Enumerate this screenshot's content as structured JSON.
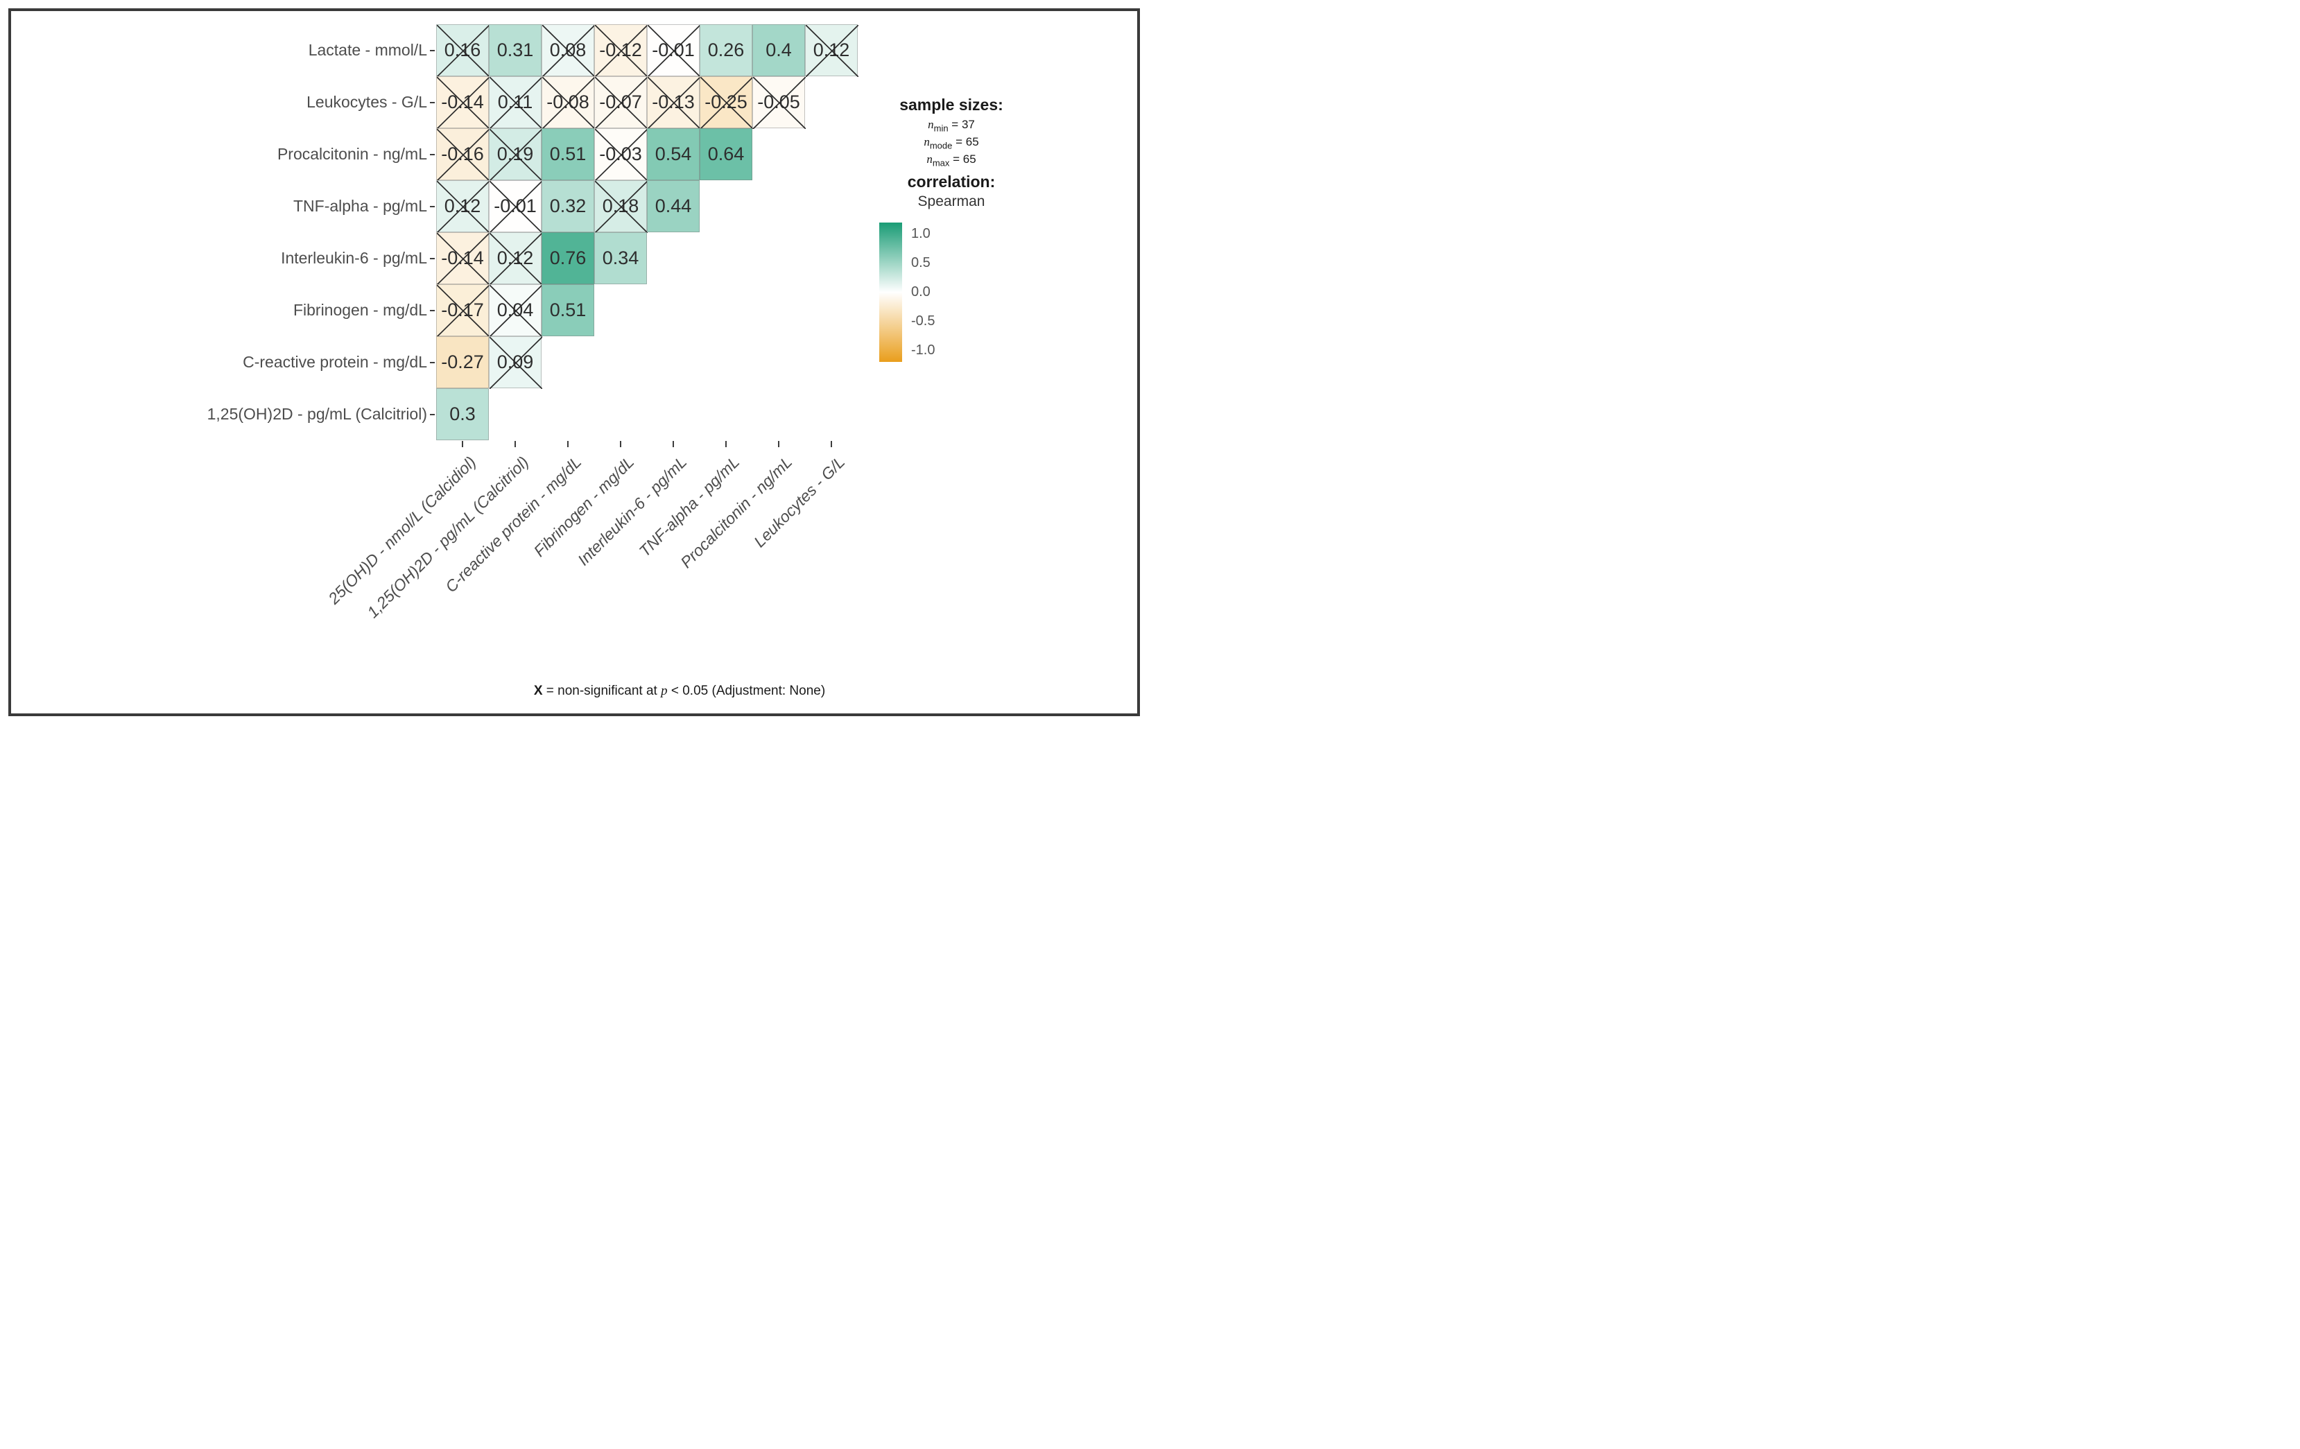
{
  "chart_data": {
    "type": "heatmap",
    "title": "",
    "correlation_method": "Spearman",
    "rows": [
      "Lactate - mmol/L",
      "Leukocytes - G/L",
      "Procalcitonin - ng/mL",
      "TNF-alpha - pg/mL",
      "Interleukin-6 - pg/mL",
      "Fibrinogen - mg/dL",
      "C-reactive protein - mg/dL",
      "1,25(OH)2D - pg/mL (Calcitriol)"
    ],
    "columns": [
      "25(OH)D - nmol/L (Calcidiol)",
      "1,25(OH)2D - pg/mL (Calcitriol)",
      "C-reactive protein - mg/dL",
      "Fibrinogen - mg/dL",
      "Interleukin-6 - pg/mL",
      "TNF-alpha - pg/mL",
      "Procalcitonin - ng/mL",
      "Leukocytes - G/L"
    ],
    "values": [
      [
        0.16,
        0.31,
        0.08,
        -0.12,
        -0.01,
        0.26,
        0.4,
        0.12
      ],
      [
        -0.14,
        0.11,
        -0.08,
        -0.07,
        -0.13,
        -0.25,
        -0.05
      ],
      [
        -0.16,
        0.19,
        0.51,
        -0.03,
        0.54,
        0.64
      ],
      [
        0.12,
        -0.01,
        0.32,
        0.18,
        0.44
      ],
      [
        -0.14,
        0.12,
        0.76,
        0.34
      ],
      [
        -0.17,
        0.04,
        0.51
      ],
      [
        -0.27,
        0.09
      ],
      [
        0.3
      ]
    ],
    "non_significant": [
      [
        true,
        false,
        true,
        true,
        true,
        false,
        false,
        true
      ],
      [
        true,
        true,
        true,
        true,
        true,
        true,
        true
      ],
      [
        true,
        true,
        false,
        true,
        false,
        false
      ],
      [
        true,
        true,
        false,
        true,
        false
      ],
      [
        true,
        true,
        false,
        false
      ],
      [
        true,
        true,
        false
      ],
      [
        false,
        true
      ],
      [
        false
      ]
    ],
    "colorbar_ticks": [
      "1.0",
      "0.5",
      "0.0",
      "-0.5",
      "-1.0"
    ],
    "color_scale": {
      "positive_end": "#1A9C75",
      "zero": "#FFFFFF",
      "negative_end": "#E99E1C",
      "range": [
        -1.0,
        1.0
      ]
    },
    "legend": {
      "sample_sizes_title": "sample sizes:",
      "sample_sizes": [
        {
          "symbol": "n",
          "sub": "min",
          "eq": " = 37"
        },
        {
          "symbol": "n",
          "sub": "mode",
          "eq": " = 65"
        },
        {
          "symbol": "n",
          "sub": "max",
          "eq": " = 65"
        }
      ],
      "correlation_title": "correlation:",
      "method": "Spearman"
    },
    "caption": {
      "x_symbol": "X",
      "mid_text": " = non-significant at ",
      "p_symbol": "p",
      "end_text": " < 0.05 (Adjustment: None)"
    }
  }
}
